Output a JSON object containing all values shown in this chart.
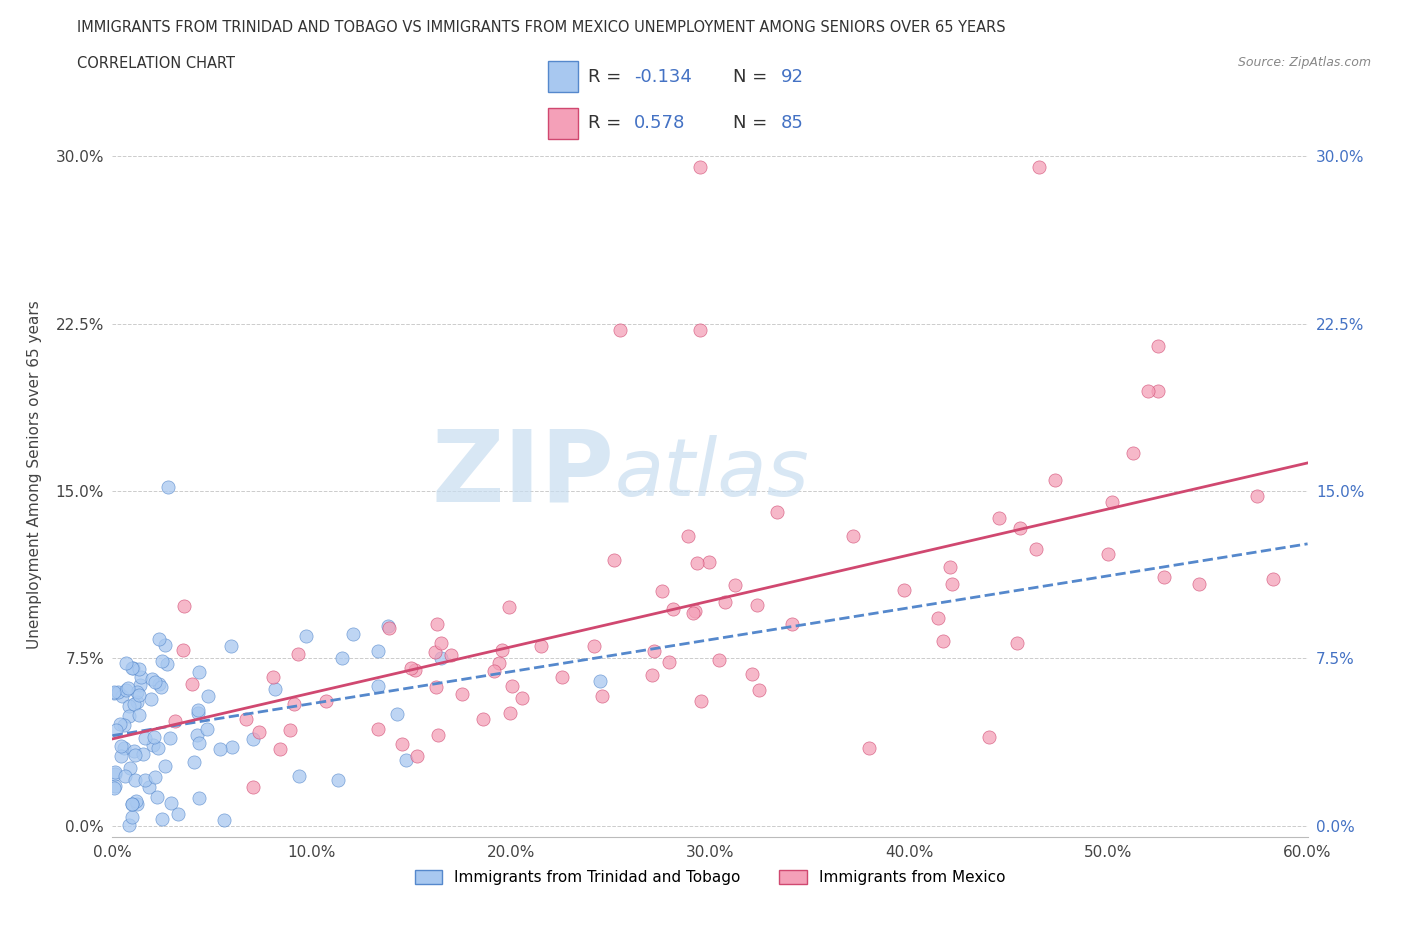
{
  "title_line1": "IMMIGRANTS FROM TRINIDAD AND TOBAGO VS IMMIGRANTS FROM MEXICO UNEMPLOYMENT AMONG SENIORS OVER 65 YEARS",
  "title_line2": "CORRELATION CHART",
  "source_text": "Source: ZipAtlas.com",
  "ylabel": "Unemployment Among Seniors over 65 years",
  "legend_label1": "Immigrants from Trinidad and Tobago",
  "legend_label2": "Immigrants from Mexico",
  "R1": -0.134,
  "N1": 92,
  "R2": 0.578,
  "N2": 85,
  "color1": "#a8c8f0",
  "color2": "#f4a0b8",
  "trend_color1": "#5588cc",
  "trend_color2": "#d04870",
  "watermark_zip": "ZIP",
  "watermark_atlas": "atlas",
  "xlim": [
    0.0,
    0.6
  ],
  "ylim": [
    -0.005,
    0.32
  ],
  "xticks": [
    0.0,
    0.1,
    0.2,
    0.3,
    0.4,
    0.5,
    0.6
  ],
  "xtick_labels": [
    "0.0%",
    "10.0%",
    "20.0%",
    "30.0%",
    "40.0%",
    "50.0%",
    "60.0%"
  ],
  "yticks": [
    0.0,
    0.075,
    0.15,
    0.225,
    0.3
  ],
  "ytick_labels": [
    "0.0%",
    "7.5%",
    "15.0%",
    "22.5%",
    "30.0%"
  ],
  "grid_color": "#cccccc",
  "background_color": "#ffffff"
}
